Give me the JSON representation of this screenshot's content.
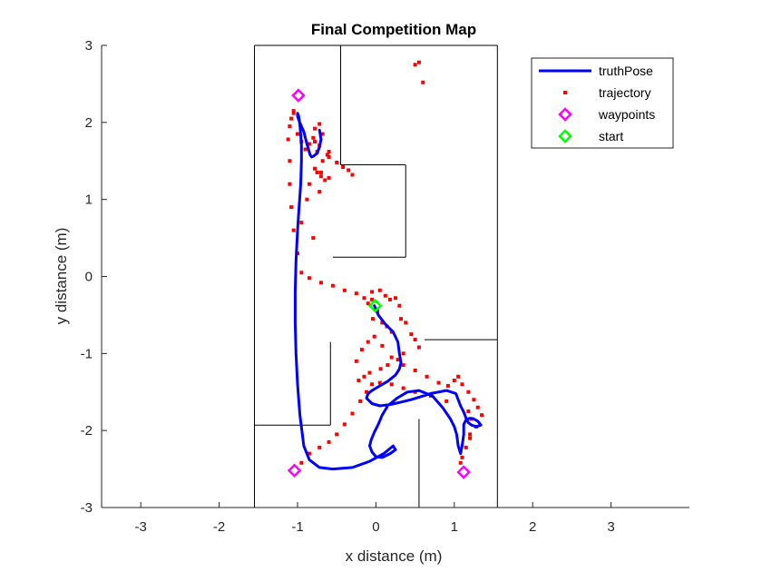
{
  "chart_data": {
    "type": "line",
    "title": "Final Competition Map",
    "xlabel": "x distance (m)",
    "ylabel": "y distance (m)",
    "xlim": [
      -3.5,
      4.0
    ],
    "ylim": [
      -3.0,
      3.0
    ],
    "xticks": [
      -3,
      -2,
      -1,
      0,
      1,
      2,
      3
    ],
    "yticks": [
      -3,
      -2,
      -1,
      0,
      1,
      2,
      3
    ],
    "grid": false,
    "legend_position": "top-right",
    "colors": {
      "truthPose": "#0000ff",
      "trajectory": "#ff0000",
      "waypoints": "#ff00ff",
      "start": "#00ff00",
      "walls": "#000000"
    },
    "legend": [
      {
        "key": "truthPose",
        "label": "truthPose",
        "marker": "line"
      },
      {
        "key": "trajectory",
        "label": "trajectory",
        "marker": "dot"
      },
      {
        "key": "waypoints",
        "label": "waypoints",
        "marker": "diamond"
      },
      {
        "key": "start",
        "label": "start",
        "marker": "diamond"
      }
    ],
    "walls": [
      [
        [
          -1.55,
          -3.0
        ],
        [
          -1.55,
          3.0
        ]
      ],
      [
        [
          -1.55,
          3.0
        ],
        [
          1.55,
          3.0
        ]
      ],
      [
        [
          1.55,
          3.0
        ],
        [
          1.55,
          -3.0
        ]
      ],
      [
        [
          1.55,
          -3.0
        ],
        [
          -1.55,
          -3.0
        ]
      ],
      [
        [
          -0.45,
          3.0
        ],
        [
          -0.45,
          1.45
        ]
      ],
      [
        [
          -0.45,
          1.45
        ],
        [
          0.38,
          1.45
        ]
      ],
      [
        [
          0.38,
          1.45
        ],
        [
          0.38,
          0.25
        ]
      ],
      [
        [
          0.38,
          0.25
        ],
        [
          -0.55,
          0.25
        ]
      ],
      [
        [
          0.62,
          -0.82
        ],
        [
          1.55,
          -0.82
        ]
      ],
      [
        [
          -1.55,
          -1.93
        ],
        [
          -0.58,
          -1.93
        ]
      ],
      [
        [
          -0.58,
          -1.93
        ],
        [
          -0.58,
          -0.85
        ]
      ],
      [
        [
          0.55,
          -1.85
        ],
        [
          0.55,
          -3.0
        ]
      ]
    ],
    "series": [
      {
        "name": "truthPose",
        "x": [
          -0.02,
          0.03,
          0.12,
          0.22,
          0.28,
          0.3,
          0.32,
          0.3,
          0.25,
          0.15,
          0.05,
          -0.05,
          -0.1,
          -0.12,
          -0.05,
          0.05,
          0.2,
          0.45,
          0.7,
          0.9,
          1.02,
          1.05,
          1.08,
          1.12,
          1.15,
          1.18,
          1.22,
          1.28,
          1.34,
          1.3,
          1.25,
          1.2,
          1.15,
          1.12,
          1.12,
          1.1,
          1.08,
          1.05,
          1.03,
          1.0,
          0.95,
          0.85,
          0.72,
          0.55,
          0.4,
          0.27,
          0.15,
          0.08,
          0.03,
          -0.02,
          -0.06,
          -0.08,
          -0.05,
          0.0,
          0.08,
          0.18,
          0.25,
          0.22,
          0.1,
          -0.08,
          -0.3,
          -0.55,
          -0.72,
          -0.85,
          -0.92,
          -0.97,
          -1.0,
          -1.02,
          -1.03,
          -1.03,
          -1.02,
          -1.0,
          -0.98,
          -0.96,
          -0.95,
          -0.95,
          -0.96,
          -0.97,
          -0.98,
          -0.99,
          -1.0,
          -1.0,
          -0.98,
          -0.95,
          -0.92,
          -0.9,
          -0.88,
          -0.86,
          -0.84,
          -0.82,
          -0.8,
          -0.75,
          -0.72,
          -0.7,
          -0.72
        ],
        "y": [
          -0.38,
          -0.5,
          -0.62,
          -0.72,
          -0.85,
          -1.0,
          -1.12,
          -1.2,
          -1.28,
          -1.36,
          -1.42,
          -1.48,
          -1.52,
          -1.58,
          -1.65,
          -1.68,
          -1.66,
          -1.6,
          -1.52,
          -1.48,
          -1.52,
          -1.6,
          -1.68,
          -1.76,
          -1.84,
          -1.9,
          -1.93,
          -1.95,
          -1.93,
          -1.88,
          -1.85,
          -1.84,
          -1.86,
          -1.92,
          -2.05,
          -2.2,
          -2.3,
          -2.2,
          -2.05,
          -1.95,
          -1.85,
          -1.7,
          -1.55,
          -1.48,
          -1.5,
          -1.58,
          -1.68,
          -1.8,
          -1.92,
          -2.02,
          -2.12,
          -2.2,
          -2.28,
          -2.34,
          -2.35,
          -2.3,
          -2.25,
          -2.2,
          -2.3,
          -2.4,
          -2.48,
          -2.5,
          -2.48,
          -2.38,
          -2.2,
          -1.8,
          -1.4,
          -1.0,
          -0.6,
          -0.2,
          0.2,
          0.6,
          0.9,
          1.2,
          1.5,
          1.7,
          1.85,
          1.96,
          2.05,
          2.1,
          2.12,
          2.08,
          2.02,
          1.95,
          1.88,
          1.8,
          1.72,
          1.65,
          1.58,
          1.55,
          1.56,
          1.6,
          1.68,
          1.78,
          1.9
        ]
      },
      {
        "name": "trajectory",
        "x": [
          0.55,
          0.5,
          0.6,
          -0.05,
          0.05,
          0.12,
          0.18,
          0.25,
          0.3,
          0.02,
          -0.04,
          0.08,
          0.14,
          0.2,
          0.32,
          0.38,
          0.45,
          0.5,
          0.55,
          0.35,
          0.28,
          0.15,
          0.06,
          -0.08,
          -0.15,
          -0.22,
          -0.25,
          -0.18,
          -0.1,
          -0.02,
          0.08,
          0.2,
          0.35,
          0.5,
          0.65,
          0.8,
          0.92,
          1.0,
          1.05,
          1.1,
          1.18,
          1.25,
          1.3,
          1.35,
          1.28,
          1.2,
          1.15,
          1.1,
          1.08,
          1.2,
          1.22,
          1.18,
          0.9,
          0.7,
          0.5,
          0.35,
          0.2,
          0.05,
          -0.05,
          -0.12,
          -0.2,
          -0.3,
          -0.4,
          -0.5,
          -0.6,
          -0.72,
          -0.85,
          -0.95,
          -0.05,
          -0.1,
          -0.15,
          -0.25,
          -0.4,
          -0.55,
          -0.7,
          -0.85,
          -0.95,
          -1.0,
          -1.05,
          -1.08,
          -1.1,
          -1.1,
          -1.12,
          -1.1,
          -1.08,
          -1.05,
          -1.05,
          -1.0,
          -0.95,
          -0.9,
          -0.85,
          -0.8,
          -0.78,
          -0.72,
          -0.68,
          -0.75,
          -0.6,
          -0.5,
          -0.42,
          -0.35,
          -0.3,
          -0.6,
          -0.7,
          -0.78,
          -0.85,
          -0.88,
          -0.95,
          -0.8,
          -0.72,
          -0.65,
          -0.7,
          -0.75,
          -0.68,
          -0.62,
          -0.6,
          -0.72,
          -0.78
        ],
        "y": [
          2.78,
          2.75,
          2.52,
          -0.2,
          -0.18,
          -0.25,
          -0.3,
          -0.28,
          -0.38,
          -0.45,
          -0.55,
          -0.6,
          -0.65,
          -0.72,
          -0.55,
          -0.6,
          -0.75,
          -0.82,
          -0.92,
          -1.0,
          -1.08,
          -1.15,
          -1.2,
          -1.25,
          -1.3,
          -1.35,
          -1.1,
          -0.95,
          -0.85,
          -0.78,
          -0.9,
          -1.05,
          -1.15,
          -1.22,
          -1.3,
          -1.38,
          -1.42,
          -1.35,
          -1.3,
          -1.4,
          -1.5,
          -1.6,
          -1.7,
          -1.8,
          -1.95,
          -2.1,
          -2.22,
          -2.35,
          -2.42,
          -2.05,
          -1.85,
          -1.75,
          -1.62,
          -1.55,
          -1.5,
          -1.45,
          -1.4,
          -1.38,
          -1.4,
          -1.5,
          -1.62,
          -1.78,
          -1.92,
          -2.05,
          -2.15,
          -2.22,
          -2.3,
          -2.42,
          -0.3,
          -0.35,
          -0.28,
          -0.22,
          -0.18,
          -0.12,
          -0.08,
          -0.02,
          0.05,
          0.3,
          0.6,
          0.9,
          1.2,
          1.5,
          1.78,
          1.95,
          2.05,
          2.12,
          2.15,
          1.85,
          1.75,
          1.65,
          1.72,
          1.8,
          1.92,
          1.98,
          1.85,
          1.62,
          1.55,
          1.48,
          1.42,
          1.38,
          1.32,
          1.28,
          1.35,
          1.4,
          1.2,
          1.0,
          0.7,
          0.5,
          1.1,
          1.25,
          1.3,
          1.35,
          1.5,
          1.58,
          1.62,
          1.7,
          1.75
        ]
      },
      {
        "name": "waypoints",
        "x": [
          -0.99,
          -1.04,
          1.12
        ],
        "y": [
          2.35,
          -2.52,
          -2.54
        ]
      },
      {
        "name": "start",
        "x": [
          -0.01
        ],
        "y": [
          -0.38
        ]
      }
    ]
  }
}
